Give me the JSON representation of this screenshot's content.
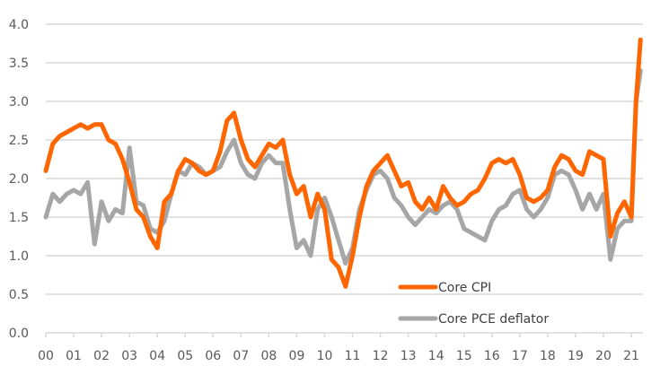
{
  "chart_data": {
    "type": "line",
    "title": "",
    "xlabel": "",
    "ylabel": "",
    "ylim": [
      0,
      4.0
    ],
    "yticks": [
      "0.0",
      "0.5",
      "1.0",
      "1.5",
      "2.0",
      "2.5",
      "3.0",
      "3.5",
      "4.0"
    ],
    "xlim": [
      2000.0,
      2021.4
    ],
    "xticks": [
      "00",
      "01",
      "02",
      "03",
      "04",
      "05",
      "06",
      "07",
      "08",
      "09",
      "10",
      "11",
      "12",
      "13",
      "14",
      "15",
      "16",
      "17",
      "18",
      "19",
      "20",
      "21"
    ],
    "grid": true,
    "legend_position": "bottom-right",
    "x": [
      2000.0,
      2000.25,
      2000.5,
      2000.75,
      2001.0,
      2001.25,
      2001.5,
      2001.75,
      2002.0,
      2002.25,
      2002.5,
      2002.75,
      2003.0,
      2003.25,
      2003.5,
      2003.75,
      2004.0,
      2004.25,
      2004.5,
      2004.75,
      2005.0,
      2005.25,
      2005.5,
      2005.75,
      2006.0,
      2006.25,
      2006.5,
      2006.75,
      2007.0,
      2007.25,
      2007.5,
      2007.75,
      2008.0,
      2008.25,
      2008.5,
      2008.75,
      2009.0,
      2009.25,
      2009.5,
      2009.75,
      2010.0,
      2010.25,
      2010.5,
      2010.75,
      2011.0,
      2011.25,
      2011.5,
      2011.75,
      2012.0,
      2012.25,
      2012.5,
      2012.75,
      2013.0,
      2013.25,
      2013.5,
      2013.75,
      2014.0,
      2014.25,
      2014.5,
      2014.75,
      2015.0,
      2015.25,
      2015.5,
      2015.75,
      2016.0,
      2016.25,
      2016.5,
      2016.75,
      2017.0,
      2017.25,
      2017.5,
      2017.75,
      2018.0,
      2018.25,
      2018.5,
      2018.75,
      2019.0,
      2019.25,
      2019.5,
      2019.75,
      2020.0,
      2020.25,
      2020.5,
      2020.75,
      2021.0,
      2021.17,
      2021.33
    ],
    "series": [
      {
        "name": "Core CPI",
        "color": "#FF6600",
        "values": [
          2.1,
          2.45,
          2.55,
          2.6,
          2.65,
          2.7,
          2.65,
          2.7,
          2.7,
          2.5,
          2.45,
          2.25,
          1.95,
          1.6,
          1.5,
          1.25,
          1.1,
          1.7,
          1.8,
          2.1,
          2.25,
          2.2,
          2.1,
          2.05,
          2.1,
          2.35,
          2.75,
          2.85,
          2.5,
          2.25,
          2.15,
          2.3,
          2.45,
          2.4,
          2.5,
          2.05,
          1.8,
          1.9,
          1.5,
          1.8,
          1.6,
          0.95,
          0.85,
          0.6,
          1.0,
          1.5,
          1.9,
          2.1,
          2.2,
          2.3,
          2.1,
          1.9,
          1.95,
          1.7,
          1.6,
          1.75,
          1.6,
          1.9,
          1.75,
          1.65,
          1.7,
          1.8,
          1.85,
          2.0,
          2.2,
          2.25,
          2.2,
          2.25,
          2.05,
          1.75,
          1.7,
          1.75,
          1.85,
          2.15,
          2.3,
          2.25,
          2.1,
          2.05,
          2.35,
          2.3,
          2.25,
          1.25,
          1.55,
          1.7,
          1.5,
          3.0,
          3.8
        ]
      },
      {
        "name": "Core PCE deflator",
        "color": "#A6A6A6",
        "values": [
          1.5,
          1.8,
          1.7,
          1.8,
          1.85,
          1.8,
          1.95,
          1.15,
          1.7,
          1.45,
          1.6,
          1.55,
          2.4,
          1.7,
          1.65,
          1.35,
          1.3,
          1.45,
          1.8,
          2.1,
          2.05,
          2.2,
          2.15,
          2.05,
          2.1,
          2.15,
          2.35,
          2.5,
          2.2,
          2.05,
          2.0,
          2.2,
          2.3,
          2.2,
          2.2,
          1.6,
          1.1,
          1.2,
          1.0,
          1.6,
          1.75,
          1.5,
          1.2,
          0.9,
          1.1,
          1.6,
          1.85,
          2.05,
          2.1,
          2.0,
          1.75,
          1.65,
          1.5,
          1.4,
          1.5,
          1.6,
          1.55,
          1.65,
          1.7,
          1.6,
          1.35,
          1.3,
          1.25,
          1.2,
          1.45,
          1.6,
          1.65,
          1.8,
          1.85,
          1.6,
          1.5,
          1.6,
          1.75,
          2.05,
          2.1,
          2.05,
          1.85,
          1.6,
          1.8,
          1.6,
          1.8,
          0.95,
          1.35,
          1.45,
          1.45,
          3.0,
          3.4
        ]
      }
    ]
  },
  "legend": {
    "items": [
      {
        "label": "Core CPI",
        "color": "#FF6600"
      },
      {
        "label": "Core PCE deflator",
        "color": "#A6A6A6"
      }
    ]
  }
}
